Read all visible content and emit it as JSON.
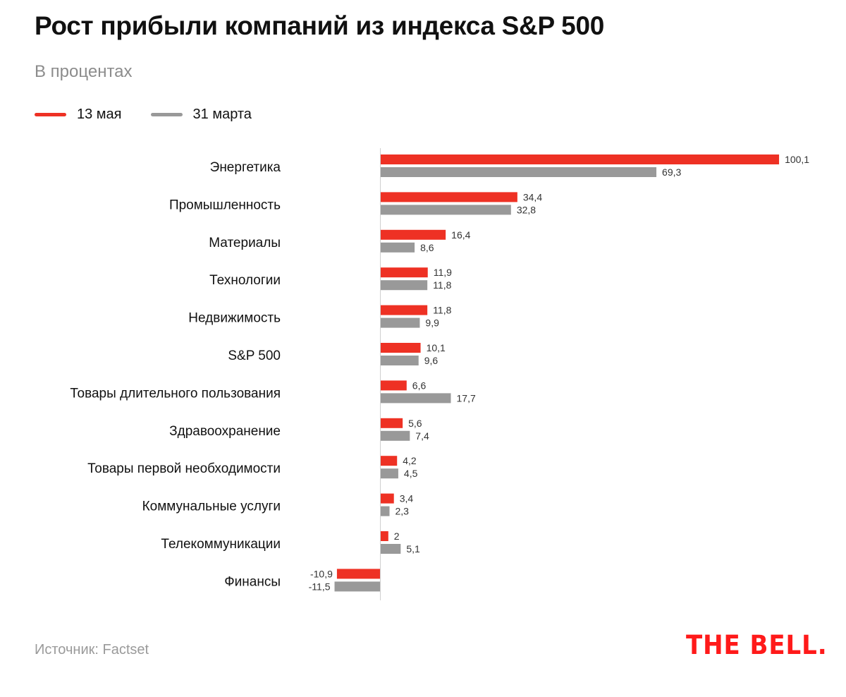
{
  "chart_data": {
    "type": "bar",
    "orientation": "horizontal",
    "title": "Рост прибыли компаний из индекса S&P 500",
    "subtitle": "В процентах",
    "categories": [
      "Энергетика",
      "Промышленность",
      "Материалы",
      "Технологии",
      "Недвижимость",
      "S&P 500",
      "Товары длительного пользования",
      "Здравоохранение",
      "Товары первой необходимости",
      "Коммунальные услуги",
      "Телекоммуникации",
      "Финансы"
    ],
    "series": [
      {
        "name": "13 мая",
        "color": "#ee3124",
        "values": [
          100.1,
          34.4,
          16.4,
          11.9,
          11.8,
          10.1,
          6.6,
          5.6,
          4.2,
          3.4,
          2,
          -10.9
        ],
        "labels": [
          "100,1",
          "34,4",
          "16,4",
          "11,9",
          "11,8",
          "10,1",
          "6,6",
          "5,6",
          "4,2",
          "3,4",
          "2",
          "-10,9"
        ]
      },
      {
        "name": "31 марта",
        "color": "#999999",
        "values": [
          69.3,
          32.8,
          8.6,
          11.8,
          9.9,
          9.6,
          17.7,
          7.4,
          4.5,
          2.3,
          5.1,
          -11.5
        ],
        "labels": [
          "69,3",
          "32,8",
          "8,6",
          "11,8",
          "9,9",
          "9,6",
          "17,7",
          "7,4",
          "4,5",
          "2,3",
          "5,1",
          "-11,5"
        ]
      },
      {
        "_": null
      }
    ],
    "xlim": [
      -11.5,
      100.1
    ],
    "grid": false,
    "legend": "top-left"
  },
  "source": "Источник: Factset",
  "logo": "THE BELL."
}
